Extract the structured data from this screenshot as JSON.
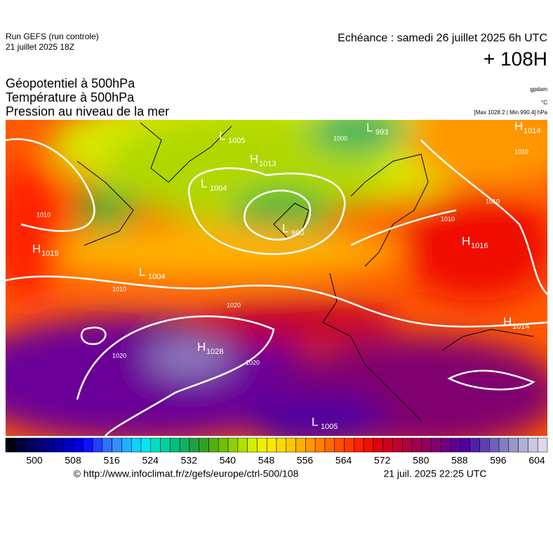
{
  "header": {
    "run": "Run GEFS (run controle)",
    "run_date": "21 juillet 2025 18Z",
    "echeance": "Echéance : samedi 26 juillet 2025 6h UTC",
    "lead": "+ 108H",
    "titles": [
      "Géopotentiel à 500hPa",
      "Température à 500hPa",
      "Pression au niveau de la mer"
    ],
    "units": [
      "gpdam",
      "°C",
      "[Max 1028.2 | Min 990.4] hPa"
    ]
  },
  "centers": [
    {
      "type": "L",
      "value": "1005"
    },
    {
      "type": "L",
      "value": "993"
    },
    {
      "type": "H",
      "value": "1013"
    },
    {
      "type": "L",
      "value": "1004"
    },
    {
      "type": "L",
      "value": "990"
    },
    {
      "type": "H",
      "value": "1014"
    },
    {
      "type": "H",
      "value": "1015"
    },
    {
      "type": "L",
      "value": "1004"
    },
    {
      "type": "H",
      "value": "1016"
    },
    {
      "type": "H",
      "value": "1014"
    },
    {
      "type": "H",
      "value": "1028"
    },
    {
      "type": "L",
      "value": "1005"
    }
  ],
  "isobar_labels": [
    "1000",
    "1010",
    "1010",
    "1020",
    "1020",
    "1020",
    "1010",
    "1010",
    "1010"
  ],
  "colorbar": {
    "ticks": [
      500,
      508,
      516,
      524,
      532,
      540,
      548,
      556,
      564,
      572,
      580,
      588,
      596,
      604
    ],
    "colors": [
      "#000010",
      "#00003a",
      "#00005a",
      "#000078",
      "#00008c",
      "#0000a8",
      "#0000c4",
      "#0000e0",
      "#1010ff",
      "#2040ff",
      "#3070ff",
      "#3090ff",
      "#20b0ff",
      "#10d0ff",
      "#00e8f0",
      "#00e0c0",
      "#00d0a0",
      "#00c080",
      "#10b060",
      "#20a040",
      "#30a020",
      "#50b010",
      "#70c000",
      "#90d000",
      "#b0e000",
      "#d0f000",
      "#f0f000",
      "#ffe800",
      "#ffd800",
      "#ffc800",
      "#ffb000",
      "#ff9800",
      "#ff8000",
      "#ff6800",
      "#ff5000",
      "#ff3800",
      "#ff2000",
      "#f01000",
      "#e00010",
      "#d00020",
      "#c00030",
      "#b00040",
      "#a00050",
      "#900060",
      "#800070",
      "#700080",
      "#600090",
      "#5000a0",
      "#5020a8",
      "#6040b0",
      "#7060b8",
      "#8080c0",
      "#9898c8",
      "#b0b0d8",
      "#c8c8e4",
      "#e0d8f0"
    ]
  },
  "footer": {
    "source": "© http://www.infoclimat.fr/z/gefs/europe/ctrl-500/108",
    "generated": "21 juil. 2025 22:25 UTC"
  }
}
